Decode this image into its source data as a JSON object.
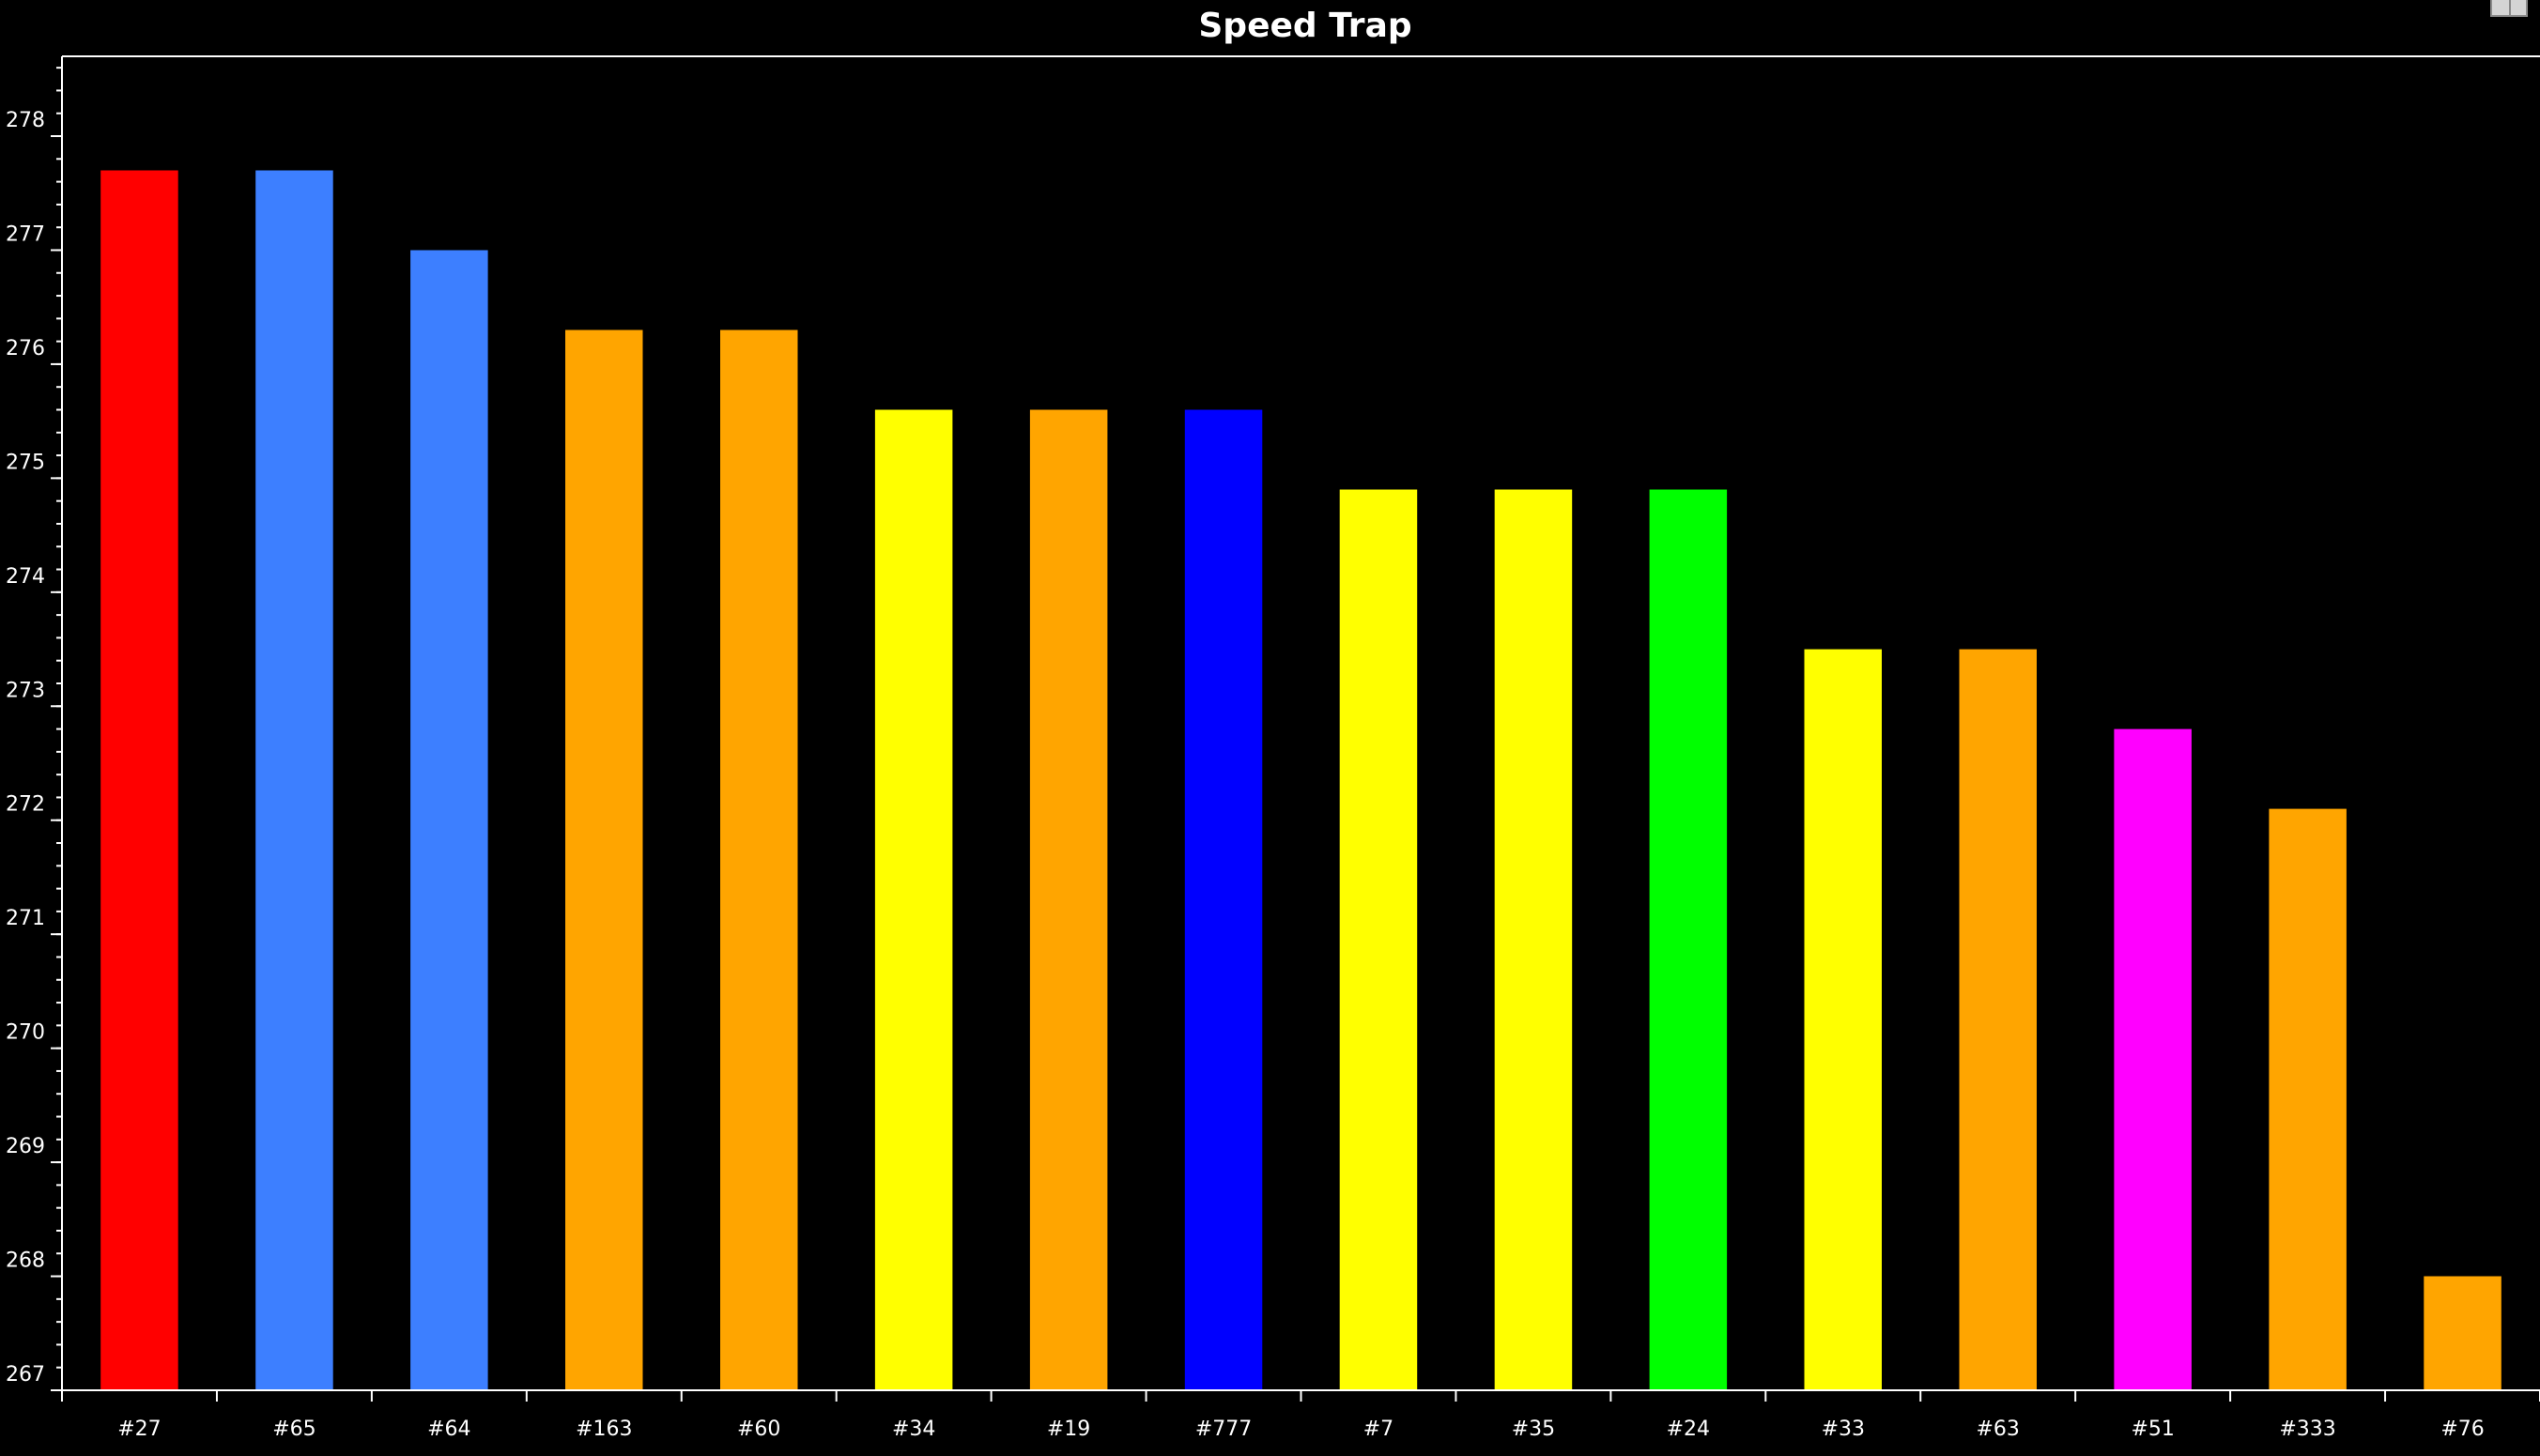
{
  "chart_data": {
    "type": "bar",
    "title": "Speed Trap",
    "xlabel": "",
    "ylabel": "",
    "ylim": [
      267,
      278.7
    ],
    "yticks": [
      267,
      268,
      269,
      270,
      271,
      272,
      273,
      274,
      275,
      276,
      277,
      278
    ],
    "grid": false,
    "categories": [
      "#27",
      "#65",
      "#64",
      "#163",
      "#60",
      "#34",
      "#19",
      "#777",
      "#7",
      "#35",
      "#24",
      "#33",
      "#63",
      "#51",
      "#333",
      "#76"
    ],
    "values": [
      277.7,
      277.7,
      277.0,
      276.3,
      276.3,
      275.6,
      275.6,
      275.6,
      274.9,
      274.9,
      274.9,
      273.5,
      273.5,
      272.8,
      272.1,
      268.0
    ],
    "colors": [
      "#ff0000",
      "#3d7fff",
      "#3d7fff",
      "#ffa500",
      "#ffa500",
      "#ffff00",
      "#ffa500",
      "#0000ff",
      "#ffff00",
      "#ffff00",
      "#00ff00",
      "#ffff00",
      "#ffa500",
      "#ff00ff",
      "#ffa500",
      "#ffa500"
    ]
  },
  "theme": {
    "background": "#000000",
    "axis_color": "#ffffff",
    "text_color": "#ffffff"
  }
}
